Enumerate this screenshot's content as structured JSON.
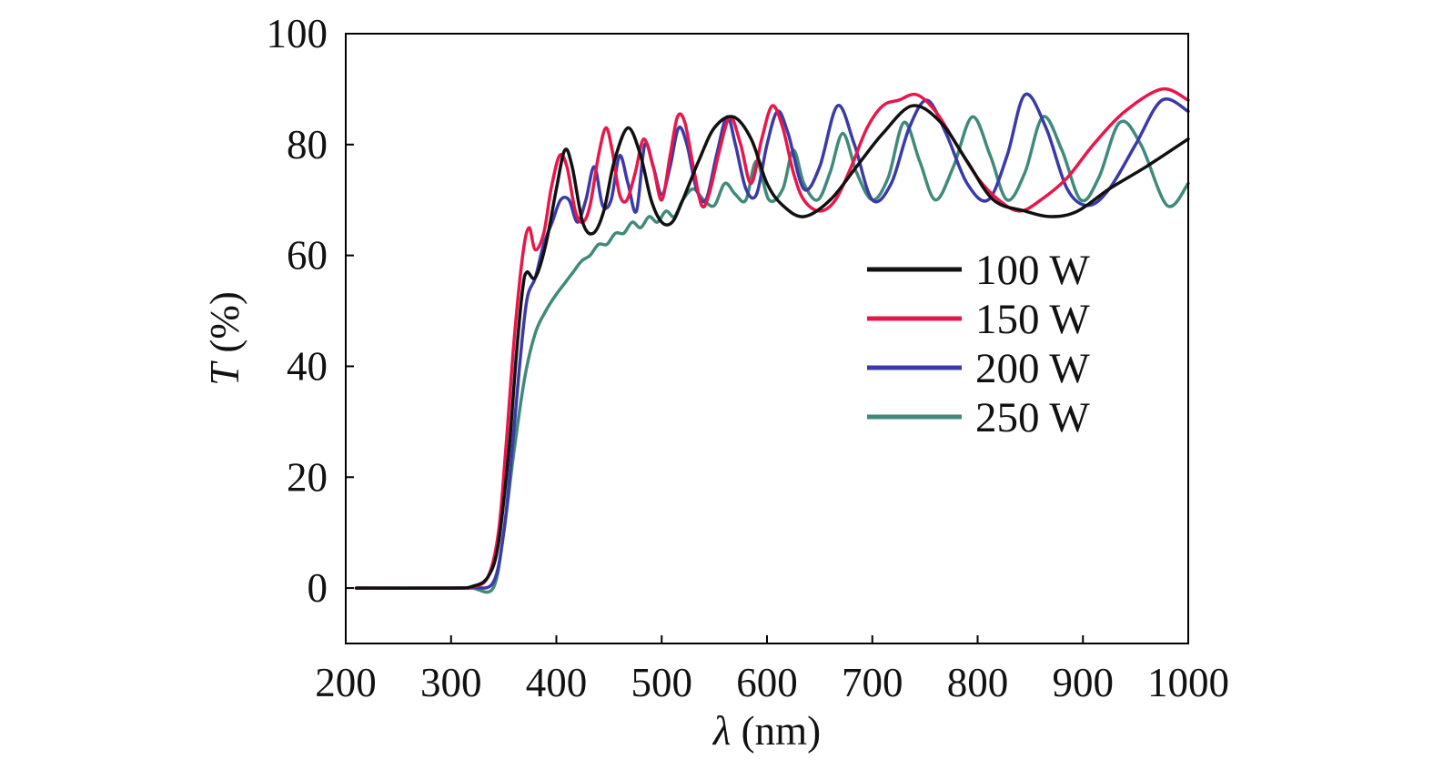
{
  "chart_data": {
    "type": "line",
    "title": "",
    "xlabel_symbol": "λ",
    "xlabel_unit": " (nm)",
    "ylabel_symbol": "T",
    "ylabel_unit": " (%)",
    "xlim": [
      200,
      1000
    ],
    "ylim": [
      -10,
      100
    ],
    "xticks": [
      200,
      300,
      400,
      500,
      600,
      700,
      800,
      900,
      1000
    ],
    "yticks": [
      0,
      20,
      40,
      60,
      80,
      100
    ],
    "grid": false,
    "legend_position": "center-right",
    "series": [
      {
        "name": "100 W",
        "color": "#111111",
        "x": [
          210,
          300,
          320,
          335,
          345,
          355,
          362,
          368,
          372,
          380,
          390,
          400,
          408,
          415,
          425,
          435,
          445,
          455,
          468,
          480,
          490,
          500,
          510,
          520,
          535,
          550,
          568,
          585,
          600,
          615,
          635,
          660,
          685,
          710,
          738,
          765,
          790,
          815,
          845,
          870,
          895,
          925,
          960,
          1000
        ],
        "y": [
          0,
          0,
          0.3,
          2,
          8,
          25,
          42,
          54,
          57,
          56,
          62,
          72,
          79,
          76,
          66,
          64,
          68,
          77,
          83,
          78,
          70,
          66,
          66,
          70,
          77,
          83,
          85,
          81,
          73,
          69,
          67,
          70,
          76,
          82,
          87,
          84,
          77,
          70,
          68,
          67,
          68,
          72,
          76,
          81
        ]
      },
      {
        "name": "150 W",
        "color": "#e8174a",
        "x": [
          210,
          300,
          320,
          335,
          345,
          352,
          360,
          368,
          374,
          380,
          388,
          395,
          403,
          410,
          418,
          425,
          432,
          440,
          447,
          453,
          460,
          467,
          475,
          483,
          492,
          500,
          508,
          515,
          522,
          530,
          538,
          545,
          555,
          565,
          575,
          585,
          595,
          605,
          615,
          625,
          635,
          650,
          665,
          680,
          695,
          710,
          725,
          742,
          760,
          780,
          800,
          820,
          840,
          860,
          885,
          910,
          940,
          975,
          1000
        ],
        "y": [
          0,
          0,
          0.2,
          2,
          10,
          25,
          45,
          60,
          65,
          61,
          64,
          72,
          78,
          76,
          68,
          66,
          69,
          78,
          83,
          79,
          71,
          70,
          75,
          81,
          76,
          70,
          78,
          85,
          84,
          76,
          69,
          71,
          79,
          85,
          80,
          73,
          81,
          87,
          83,
          75,
          70,
          68,
          70,
          76,
          83,
          87,
          88,
          89,
          86,
          80,
          74,
          70,
          68,
          70,
          74,
          80,
          86,
          90,
          88
        ]
      },
      {
        "name": "200 W",
        "color": "#3a3aa8",
        "x": [
          210,
          300,
          320,
          340,
          350,
          358,
          365,
          372,
          380,
          388,
          396,
          404,
          412,
          420,
          428,
          436,
          444,
          452,
          460,
          468,
          476,
          484,
          492,
          500,
          508,
          516,
          524,
          533,
          542,
          552,
          562,
          570,
          580,
          590,
          600,
          610,
          620,
          635,
          650,
          667,
          683,
          700,
          718,
          735,
          752,
          770,
          790,
          810,
          828,
          845,
          865,
          885,
          905,
          925,
          950,
          975,
          1000
        ],
        "y": [
          0,
          0,
          0.1,
          1,
          10,
          25,
          40,
          52,
          56,
          62,
          66,
          70,
          70,
          66,
          70,
          76,
          69,
          70,
          78,
          73,
          68,
          80,
          76,
          71,
          76,
          83,
          80,
          72,
          70,
          78,
          85,
          80,
          72,
          71,
          80,
          86,
          82,
          72,
          76,
          87,
          80,
          70,
          73,
          83,
          88,
          82,
          73,
          70,
          78,
          89,
          83,
          72,
          69,
          72,
          80,
          88,
          86
        ]
      },
      {
        "name": "250 W",
        "color": "#3f8a7a",
        "x": [
          210,
          300,
          320,
          340,
          350,
          360,
          370,
          380,
          390,
          400,
          408,
          416,
          424,
          432,
          440,
          448,
          456,
          464,
          472,
          480,
          488,
          496,
          504,
          512,
          520,
          530,
          540,
          550,
          560,
          570,
          580,
          590,
          602,
          615,
          625,
          635,
          648,
          660,
          672,
          685,
          700,
          715,
          730,
          745,
          760,
          777,
          795,
          812,
          828,
          845,
          862,
          880,
          898,
          915,
          935,
          955,
          980,
          1000
        ],
        "y": [
          0,
          0,
          0,
          0,
          10,
          25,
          38,
          46,
          50,
          53,
          55,
          57,
          59,
          60,
          62,
          62,
          64,
          64,
          66,
          65,
          67,
          66,
          68,
          67,
          70,
          72,
          70,
          69,
          73,
          71,
          70,
          77,
          70,
          72,
          79,
          73,
          70,
          75,
          82,
          75,
          70,
          74,
          84,
          77,
          70,
          76,
          85,
          78,
          70,
          75,
          85,
          79,
          70,
          74,
          84,
          80,
          69,
          73
        ]
      }
    ]
  }
}
